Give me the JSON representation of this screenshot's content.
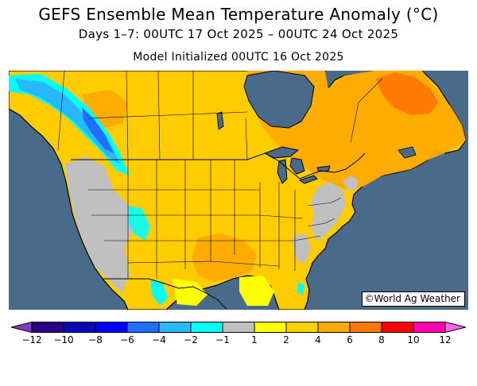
{
  "title": {
    "main": "GEFS Ensemble Mean Temperature Anomaly (°C)",
    "period": "Days 1–7: 00UTC 17 Oct 2025 – 00UTC 24 Oct 2025",
    "init": "Model Initialized 00UTC 16 Oct 2025"
  },
  "map": {
    "region": "North America",
    "credit": "©World Ag Weather",
    "ocean_color": "#4a6a8a",
    "land_default_color": "#ffcc00"
  },
  "legend": {
    "ticks": [
      "-12",
      "-10",
      "-8",
      "-6",
      "-4",
      "-2",
      "-1",
      "1",
      "2",
      "4",
      "6",
      "8",
      "10",
      "12"
    ],
    "colors": [
      "#7a3cc8",
      "#2a0088",
      "#0a0ab4",
      "#0000ff",
      "#2070ff",
      "#28b8ff",
      "#00ffff",
      "#c0c0c0",
      "#ffff00",
      "#ffd200",
      "#ffaa00",
      "#ff7800",
      "#ff0000",
      "#ff00b4",
      "#ff66ee"
    ]
  }
}
